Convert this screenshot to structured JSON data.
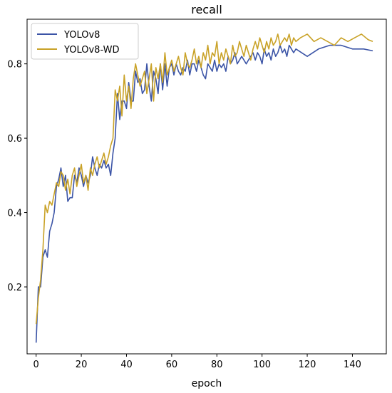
{
  "chart_data": {
    "type": "line",
    "title": "recall",
    "xlabel": "epoch",
    "ylabel": "",
    "xlim": [
      -4,
      155
    ],
    "ylim": [
      0.02,
      0.92
    ],
    "xticks": [
      0,
      20,
      40,
      60,
      80,
      100,
      120,
      140
    ],
    "yticks": [
      0.2,
      0.4,
      0.6,
      0.8
    ],
    "grid": false,
    "legend_position": "top-left",
    "series": [
      {
        "name": "YOLOv8",
        "color": "#3b54a6",
        "x": [
          0,
          1,
          2,
          3,
          4,
          5,
          6,
          7,
          8,
          9,
          10,
          11,
          12,
          13,
          14,
          15,
          16,
          17,
          18,
          19,
          20,
          21,
          22,
          23,
          24,
          25,
          26,
          27,
          28,
          29,
          30,
          31,
          32,
          33,
          34,
          35,
          36,
          37,
          38,
          39,
          40,
          41,
          42,
          43,
          44,
          45,
          46,
          47,
          48,
          49,
          50,
          51,
          52,
          53,
          54,
          55,
          56,
          57,
          58,
          59,
          60,
          61,
          62,
          63,
          64,
          65,
          66,
          67,
          68,
          69,
          70,
          71,
          72,
          73,
          74,
          75,
          76,
          77,
          78,
          79,
          80,
          81,
          82,
          83,
          84,
          85,
          86,
          87,
          88,
          89,
          90,
          91,
          92,
          93,
          94,
          95,
          96,
          97,
          98,
          99,
          100,
          101,
          102,
          103,
          104,
          105,
          106,
          107,
          108,
          109,
          110,
          111,
          112,
          113,
          114,
          115,
          120,
          125,
          130,
          135,
          140,
          145,
          149
        ],
        "y": [
          0.05,
          0.2,
          0.2,
          0.28,
          0.3,
          0.28,
          0.35,
          0.37,
          0.4,
          0.47,
          0.49,
          0.52,
          0.47,
          0.5,
          0.43,
          0.44,
          0.44,
          0.5,
          0.48,
          0.52,
          0.5,
          0.47,
          0.5,
          0.48,
          0.5,
          0.55,
          0.52,
          0.5,
          0.53,
          0.52,
          0.54,
          0.52,
          0.53,
          0.5,
          0.56,
          0.6,
          0.72,
          0.65,
          0.7,
          0.7,
          0.68,
          0.75,
          0.7,
          0.7,
          0.78,
          0.75,
          0.76,
          0.72,
          0.73,
          0.8,
          0.74,
          0.7,
          0.78,
          0.76,
          0.72,
          0.8,
          0.73,
          0.8,
          0.74,
          0.79,
          0.8,
          0.77,
          0.8,
          0.78,
          0.77,
          0.79,
          0.78,
          0.81,
          0.77,
          0.8,
          0.8,
          0.78,
          0.81,
          0.79,
          0.77,
          0.76,
          0.8,
          0.79,
          0.78,
          0.81,
          0.78,
          0.8,
          0.79,
          0.8,
          0.78,
          0.82,
          0.8,
          0.81,
          0.83,
          0.8,
          0.81,
          0.82,
          0.81,
          0.8,
          0.81,
          0.82,
          0.83,
          0.81,
          0.83,
          0.82,
          0.8,
          0.84,
          0.82,
          0.83,
          0.81,
          0.84,
          0.82,
          0.83,
          0.85,
          0.83,
          0.84,
          0.82,
          0.85,
          0.84,
          0.83,
          0.84,
          0.82,
          0.84,
          0.85,
          0.85,
          0.84,
          0.84,
          0.835
        ]
      },
      {
        "name": "YOLOv8-WD",
        "color": "#c9a227",
        "x": [
          0,
          1,
          2,
          3,
          4,
          5,
          6,
          7,
          8,
          9,
          10,
          11,
          12,
          13,
          14,
          15,
          16,
          17,
          18,
          19,
          20,
          21,
          22,
          23,
          24,
          25,
          26,
          27,
          28,
          29,
          30,
          31,
          32,
          33,
          34,
          35,
          36,
          37,
          38,
          39,
          40,
          41,
          42,
          43,
          44,
          45,
          46,
          47,
          48,
          49,
          50,
          51,
          52,
          53,
          54,
          55,
          56,
          57,
          58,
          59,
          60,
          61,
          62,
          63,
          64,
          65,
          66,
          67,
          68,
          69,
          70,
          71,
          72,
          73,
          74,
          75,
          76,
          77,
          78,
          79,
          80,
          81,
          82,
          83,
          84,
          85,
          86,
          87,
          88,
          89,
          90,
          91,
          92,
          93,
          94,
          95,
          96,
          97,
          98,
          99,
          100,
          101,
          102,
          103,
          104,
          105,
          106,
          107,
          108,
          109,
          110,
          111,
          112,
          113,
          114,
          115,
          117,
          120,
          123,
          126,
          129,
          132,
          135,
          138,
          141,
          144,
          147,
          149
        ],
        "y": [
          0.1,
          0.17,
          0.22,
          0.3,
          0.42,
          0.4,
          0.43,
          0.42,
          0.45,
          0.48,
          0.47,
          0.51,
          0.5,
          0.46,
          0.49,
          0.45,
          0.5,
          0.52,
          0.47,
          0.5,
          0.53,
          0.48,
          0.5,
          0.46,
          0.52,
          0.5,
          0.53,
          0.55,
          0.52,
          0.54,
          0.56,
          0.53,
          0.55,
          0.58,
          0.6,
          0.73,
          0.7,
          0.74,
          0.66,
          0.77,
          0.7,
          0.74,
          0.68,
          0.76,
          0.8,
          0.77,
          0.74,
          0.76,
          0.78,
          0.72,
          0.76,
          0.8,
          0.7,
          0.79,
          0.76,
          0.8,
          0.75,
          0.83,
          0.77,
          0.79,
          0.81,
          0.78,
          0.8,
          0.82,
          0.79,
          0.77,
          0.83,
          0.8,
          0.79,
          0.81,
          0.84,
          0.8,
          0.82,
          0.79,
          0.83,
          0.81,
          0.85,
          0.8,
          0.83,
          0.82,
          0.86,
          0.8,
          0.83,
          0.81,
          0.84,
          0.82,
          0.8,
          0.85,
          0.82,
          0.83,
          0.86,
          0.84,
          0.82,
          0.85,
          0.83,
          0.81,
          0.84,
          0.86,
          0.84,
          0.87,
          0.85,
          0.83,
          0.86,
          0.84,
          0.87,
          0.85,
          0.86,
          0.88,
          0.85,
          0.86,
          0.87,
          0.86,
          0.88,
          0.85,
          0.87,
          0.86,
          0.87,
          0.88,
          0.86,
          0.87,
          0.86,
          0.85,
          0.87,
          0.86,
          0.87,
          0.88,
          0.865,
          0.86
        ]
      }
    ]
  }
}
